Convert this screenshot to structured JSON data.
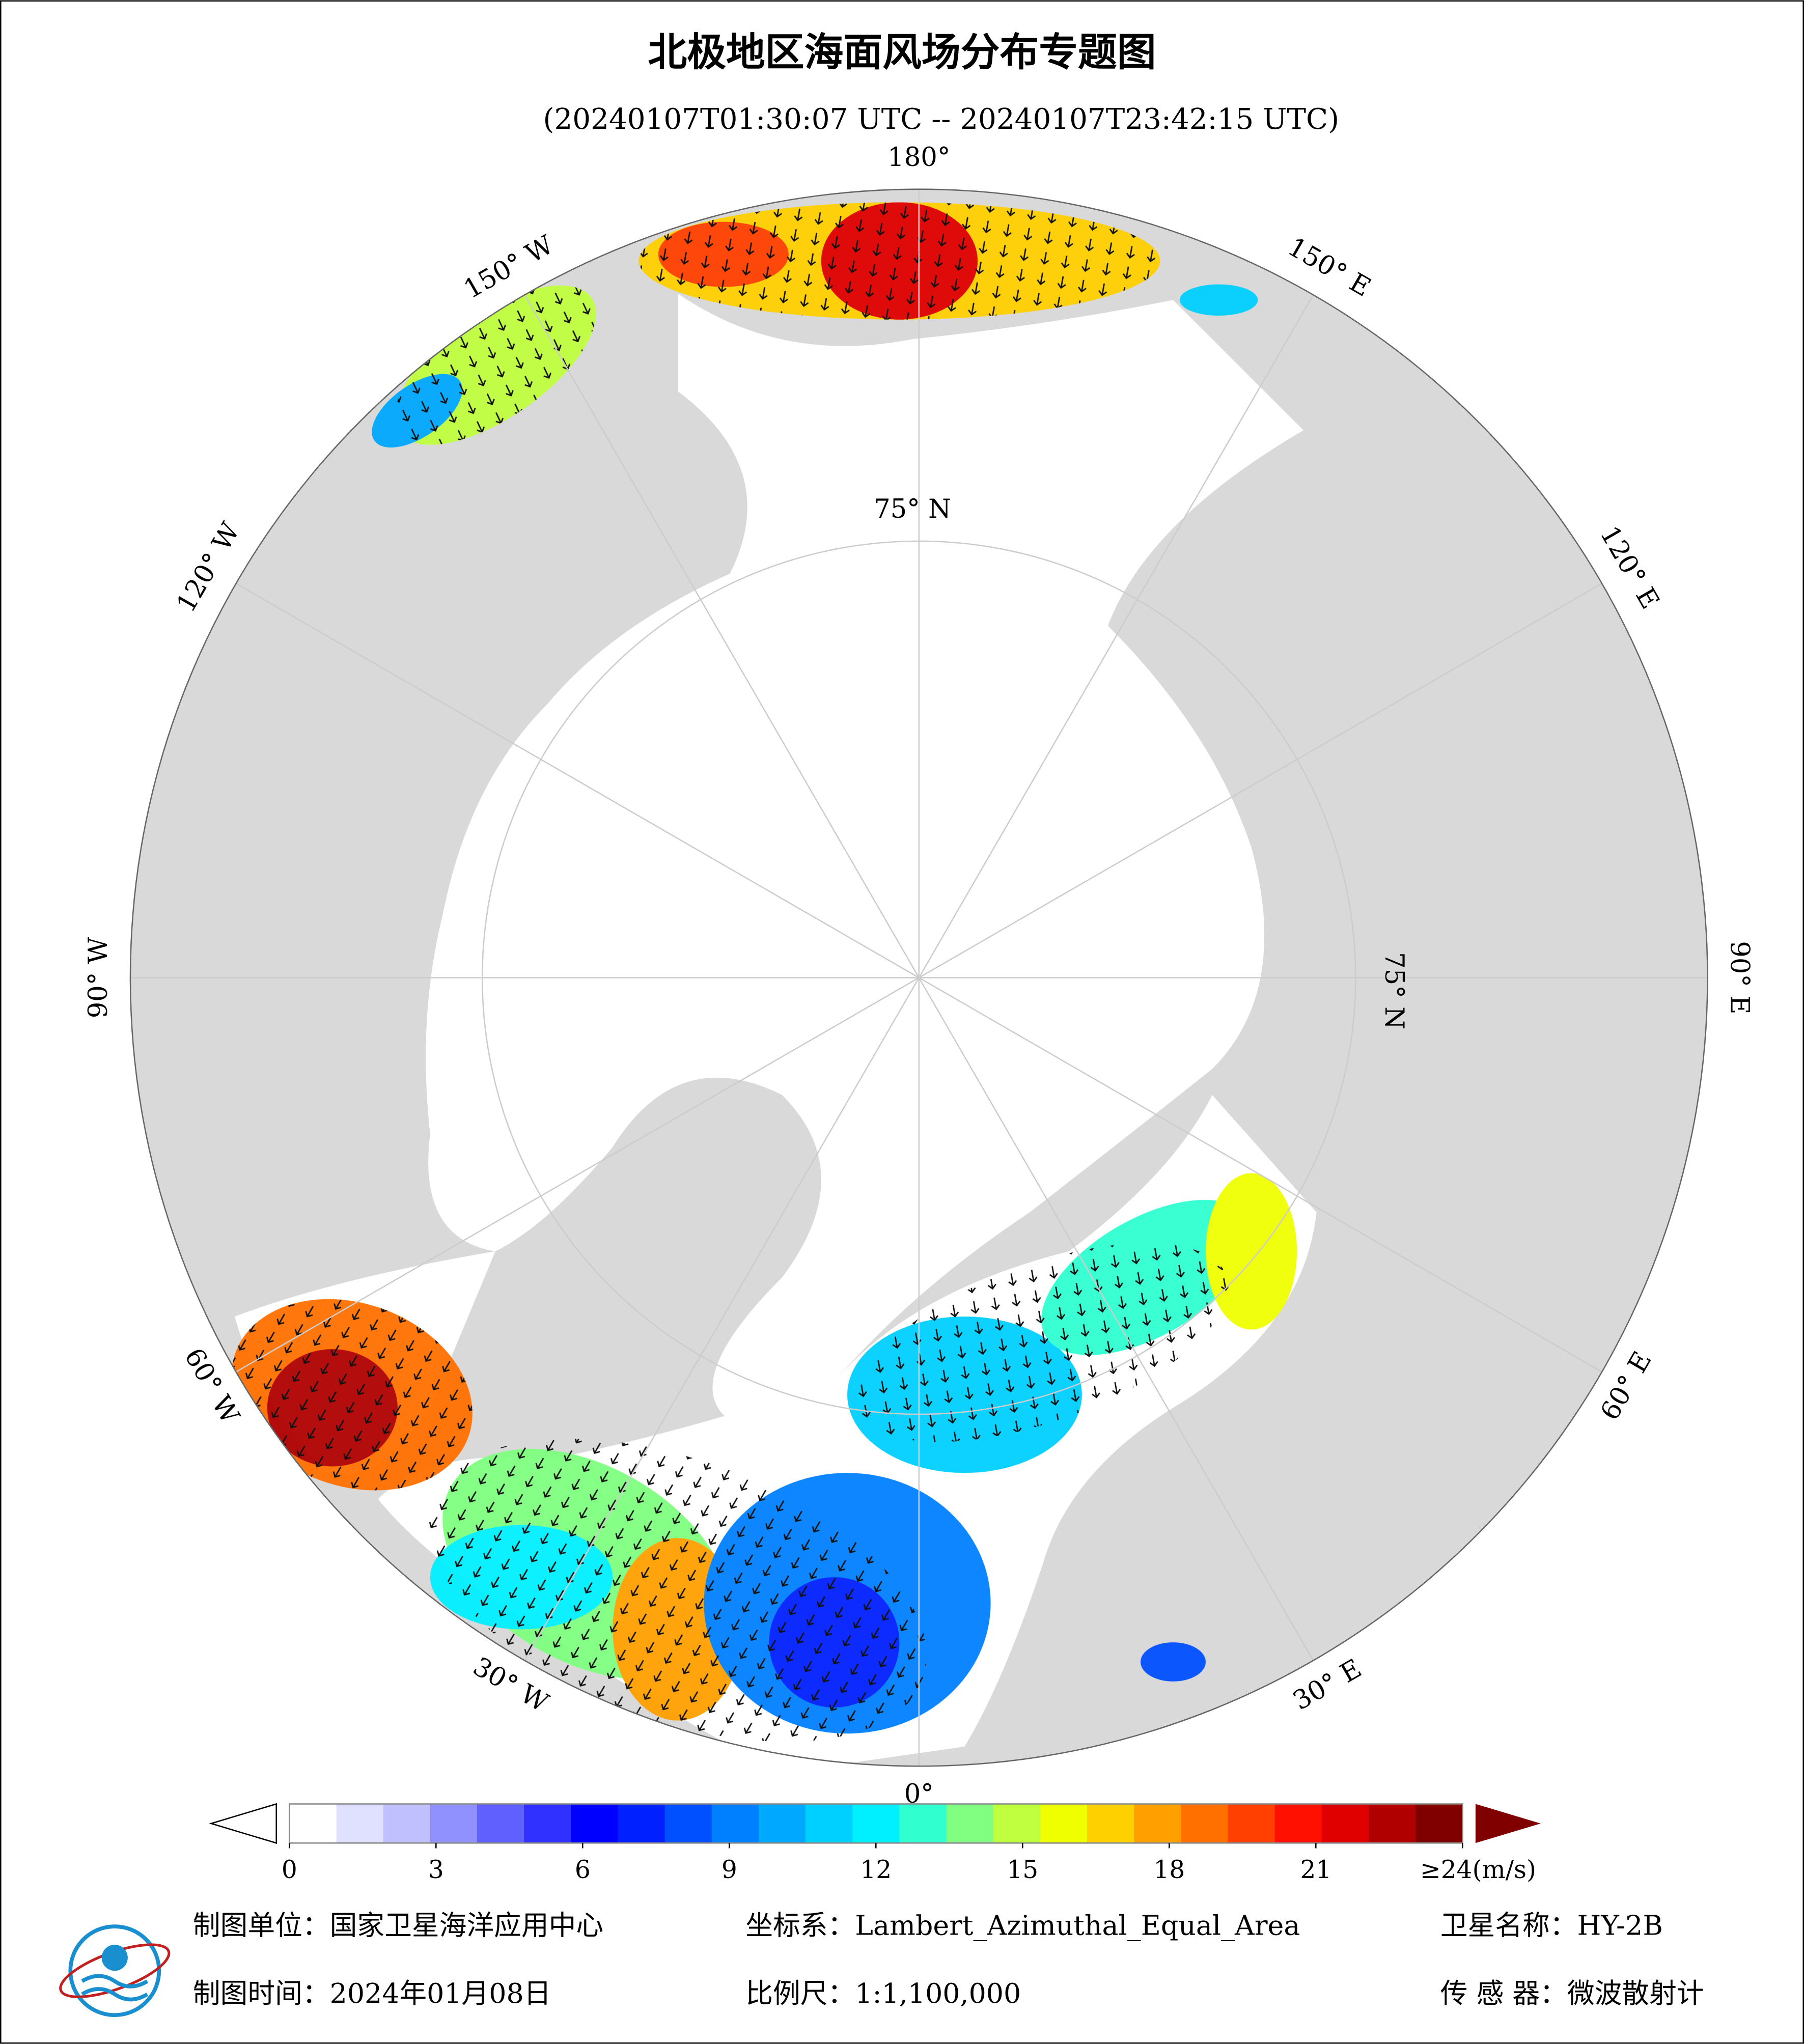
{
  "header": {
    "title": "北极地区海面风场分布专题图",
    "subtitle": "(20240107T01:30:07 UTC -- 20240107T23:42:15 UTC)"
  },
  "map": {
    "lon_labels": [
      "180°",
      "150° E",
      "120° E",
      "90° E",
      "60° E",
      "30° E",
      "0°",
      "30° W",
      "60° W",
      "90° W",
      "120° W",
      "150° W"
    ],
    "lat_label": "75° N"
  },
  "colorbar": {
    "ticks": [
      0,
      3,
      6,
      9,
      12,
      15,
      18,
      21,
      {
        "value": 24,
        "label": "≥24(m/s)"
      }
    ],
    "lim": [
      0,
      24
    ],
    "colors": [
      "#ffffff",
      "#e0e0ff",
      "#c0c0ff",
      "#9090ff",
      "#6060ff",
      "#3030ff",
      "#0000ff",
      "#0020ff",
      "#0050ff",
      "#0080ff",
      "#00a8ff",
      "#00d0ff",
      "#00f0ff",
      "#30ffd0",
      "#80ff80",
      "#c0ff40",
      "#f0ff00",
      "#ffd000",
      "#ffa000",
      "#ff7000",
      "#ff4000",
      "#ff1000",
      "#e00000",
      "#b00000",
      "#800000"
    ]
  },
  "footer": {
    "unit": "制图单位：国家卫星海洋应用中心",
    "crs": "坐标系：Lambert_Azimuthal_Equal_Area",
    "satellite": "卫星名称：HY-2B",
    "date": "制图时间：2024年01月08日",
    "scale": "比例尺：1:1,100,000",
    "sensor": "传 感 器：微波散射计"
  }
}
